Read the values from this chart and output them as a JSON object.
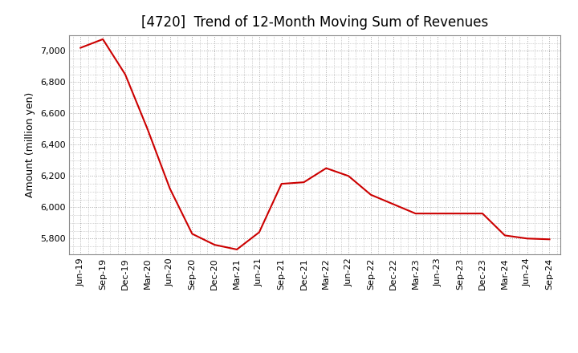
{
  "title": "[4720]  Trend of 12-Month Moving Sum of Revenues",
  "ylabel": "Amount (million yen)",
  "line_color": "#CC0000",
  "background_color": "#FFFFFF",
  "plot_background_color": "#FFFFFF",
  "grid_color": "#AAAAAA",
  "x_labels": [
    "Jun-19",
    "Sep-19",
    "Dec-19",
    "Mar-20",
    "Jun-20",
    "Sep-20",
    "Dec-20",
    "Mar-21",
    "Jun-21",
    "Sep-21",
    "Dec-21",
    "Mar-22",
    "Jun-22",
    "Sep-22",
    "Dec-22",
    "Mar-23",
    "Jun-23",
    "Sep-23",
    "Dec-23",
    "Mar-24",
    "Jun-24",
    "Sep-24"
  ],
  "values": [
    7020,
    7075,
    6850,
    6500,
    6120,
    5830,
    5760,
    5730,
    5840,
    6150,
    6160,
    6250,
    6200,
    6080,
    6020,
    5960,
    5960,
    5960,
    5960,
    5820,
    5800,
    5795
  ],
  "ylim": [
    5700,
    7100
  ],
  "yticks": [
    5800,
    6000,
    6200,
    6400,
    6600,
    6800,
    7000
  ],
  "title_fontsize": 12,
  "axis_fontsize": 9,
  "tick_fontsize": 8
}
